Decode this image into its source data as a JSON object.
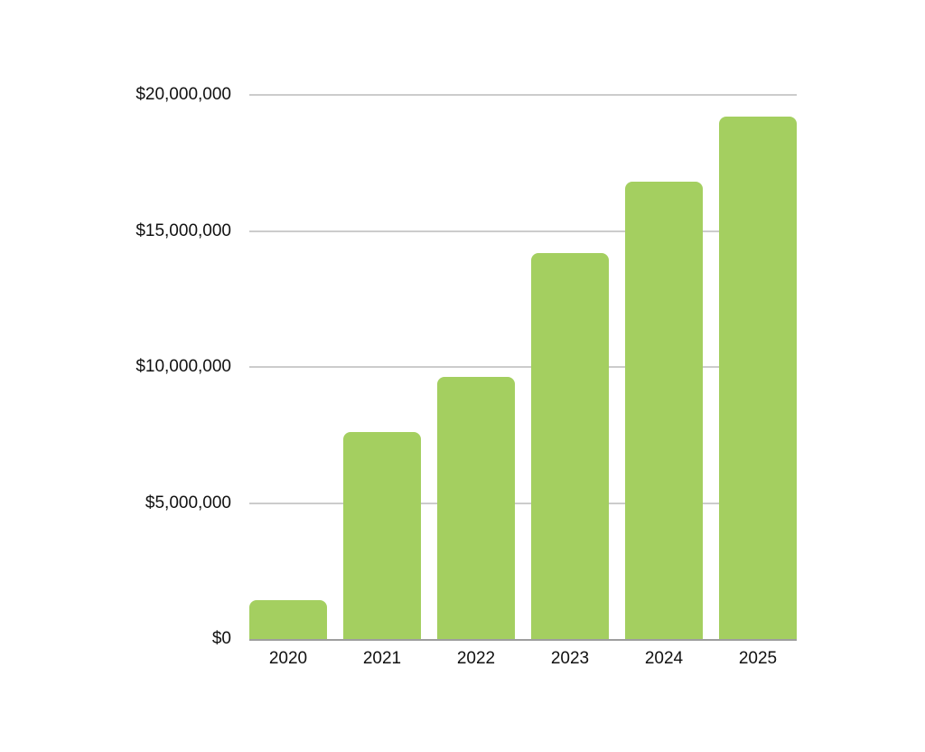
{
  "chart_data": {
    "type": "bar",
    "title": "",
    "xlabel": "",
    "ylabel": "",
    "categories": [
      "2020",
      "2021",
      "2022",
      "2023",
      "2024",
      "2025"
    ],
    "values": [
      1430000,
      7600000,
      9630000,
      14200000,
      16800000,
      19200000
    ],
    "ylim": [
      0,
      20000000
    ],
    "yticks": [
      0,
      5000000,
      10000000,
      15000000,
      20000000
    ],
    "ytick_labels": [
      "$0",
      "$5,000,000",
      "$10,000,000",
      "$15,000,000",
      "$20,000,000"
    ],
    "grid": true,
    "legend": null,
    "bar_color": "#a4cf60"
  }
}
